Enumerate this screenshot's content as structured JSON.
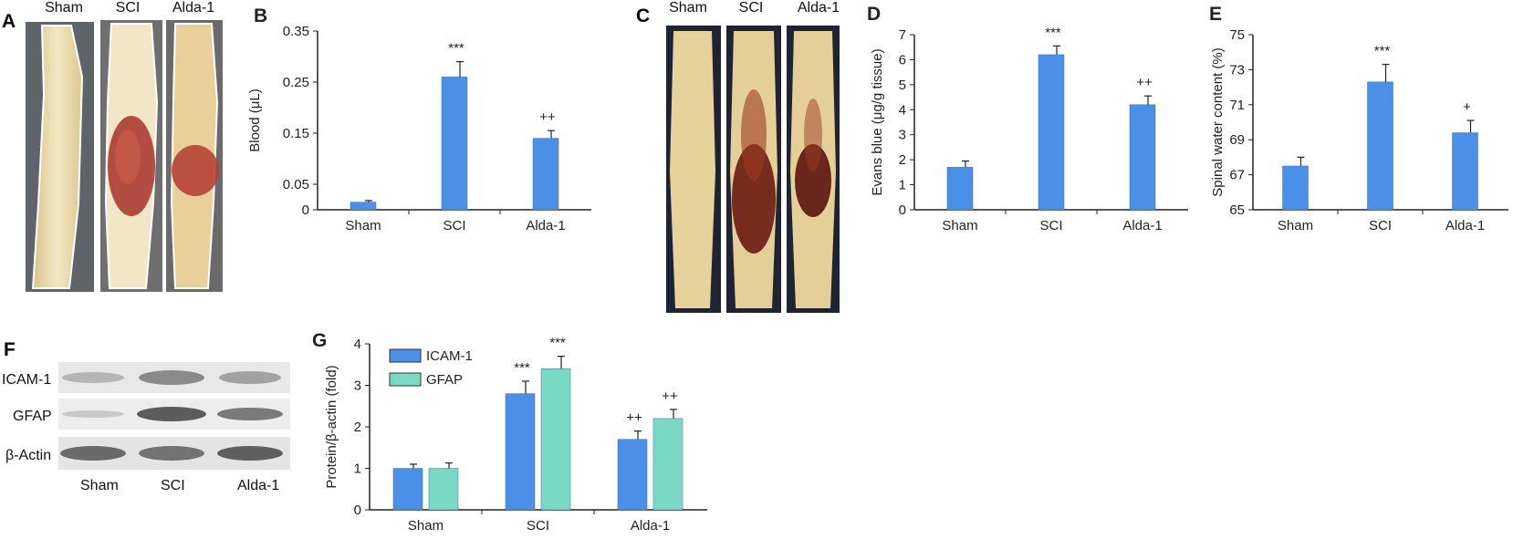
{
  "panels": {
    "A": {
      "letter": "A",
      "groups": [
        "Sham",
        "SCI",
        "Alda-1"
      ]
    },
    "C": {
      "letter": "C",
      "groups": [
        "Sham",
        "SCI",
        "Alda-1"
      ]
    },
    "F": {
      "letter": "F",
      "rows": [
        "ICAM-1",
        "GFAP",
        "β-Actin"
      ],
      "groups": [
        "Sham",
        "SCI",
        "Alda-1"
      ]
    }
  },
  "colors": {
    "bar_blue": "#4a90e8",
    "bar_teal": "#7ad9c2"
  },
  "chart_data": [
    {
      "id": "B",
      "letter": "B",
      "type": "bar",
      "categories": [
        "Sham",
        "SCI",
        "Alda-1"
      ],
      "values": [
        0.015,
        0.26,
        0.14
      ],
      "errors": [
        0.003,
        0.03,
        0.015
      ],
      "annotations": [
        "",
        "***",
        "++"
      ],
      "ylabel": "Blood (μL)",
      "ylim": [
        0,
        0.35
      ],
      "yticks": [
        0,
        0.05,
        0.15,
        0.25,
        0.35
      ],
      "ytick_labels": [
        "0",
        "0.05",
        "0.15",
        "0.25",
        "0.35"
      ]
    },
    {
      "id": "D",
      "letter": "D",
      "type": "bar",
      "categories": [
        "Sham",
        "SCI",
        "Alda-1"
      ],
      "values": [
        1.7,
        6.2,
        4.2
      ],
      "errors": [
        0.25,
        0.35,
        0.35
      ],
      "annotations": [
        "",
        "***",
        "++"
      ],
      "ylabel": "Evans blue (μg/g tissue)",
      "ylim": [
        0,
        7
      ],
      "yticks": [
        0,
        1,
        2,
        3,
        4,
        5,
        6,
        7
      ],
      "ytick_labels": [
        "0",
        "1",
        "2",
        "3",
        "4",
        "5",
        "6",
        "7"
      ]
    },
    {
      "id": "E",
      "letter": "E",
      "type": "bar",
      "categories": [
        "Sham",
        "SCI",
        "Alda-1"
      ],
      "values": [
        67.5,
        72.3,
        69.4
      ],
      "errors": [
        0.5,
        1.0,
        0.7
      ],
      "annotations": [
        "",
        "***",
        "+"
      ],
      "ylabel": "Spinal water content (%)",
      "ylim": [
        65,
        75
      ],
      "yticks": [
        65,
        67,
        69,
        71,
        73,
        75
      ],
      "ytick_labels": [
        "65",
        "67",
        "69",
        "71",
        "73",
        "75"
      ]
    },
    {
      "id": "G",
      "letter": "G",
      "type": "bar",
      "categories": [
        "Sham",
        "SCI",
        "Alda-1"
      ],
      "series": [
        {
          "name": "ICAM-1",
          "values": [
            1.0,
            2.8,
            1.7
          ],
          "errors": [
            0.1,
            0.3,
            0.2
          ],
          "annotations": [
            "",
            "***",
            "++"
          ]
        },
        {
          "name": "GFAP",
          "values": [
            1.0,
            3.4,
            2.2
          ],
          "errors": [
            0.13,
            0.3,
            0.22
          ],
          "annotations": [
            "",
            "***",
            "++"
          ]
        }
      ],
      "ylabel": "Protein/β-actin (fold)",
      "ylim": [
        0,
        4
      ],
      "yticks": [
        0,
        1,
        2,
        3,
        4
      ],
      "ytick_labels": [
        "0",
        "1",
        "2",
        "3",
        "4"
      ],
      "legend": "top-left"
    }
  ]
}
